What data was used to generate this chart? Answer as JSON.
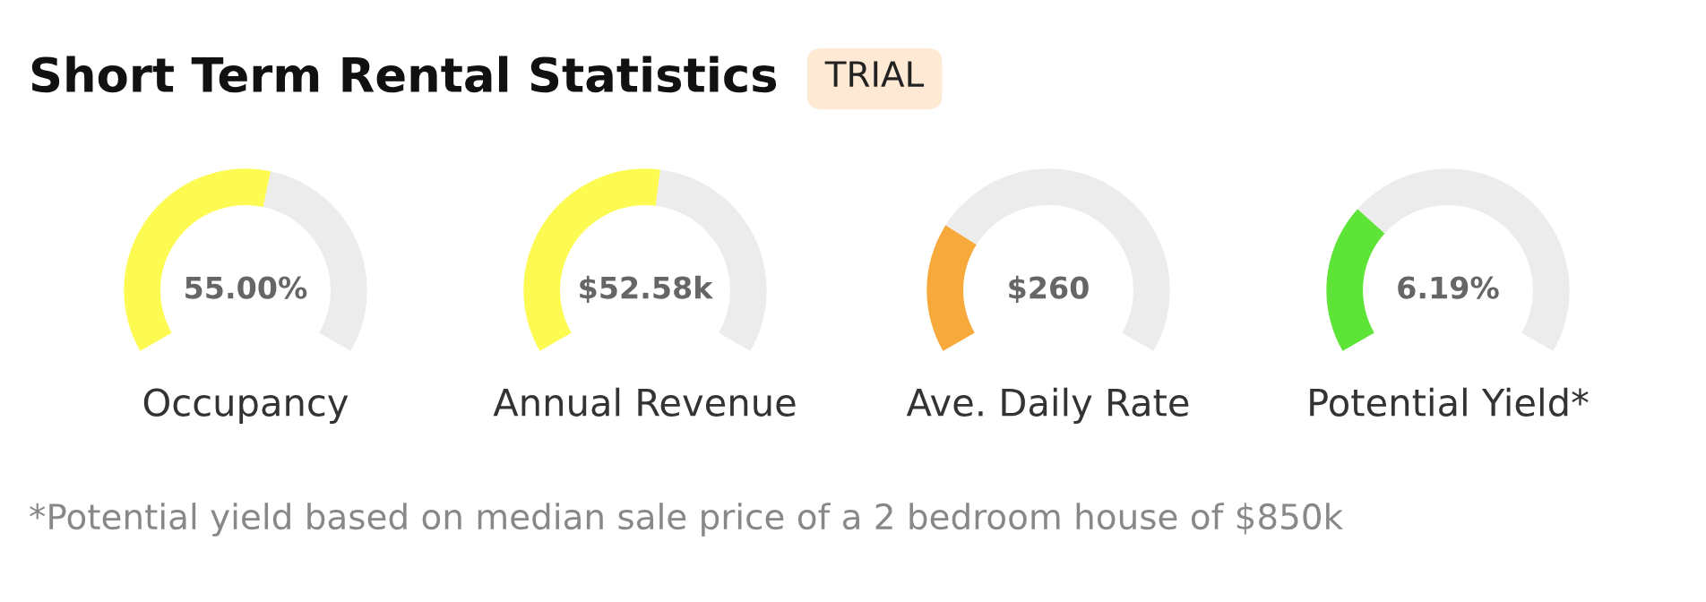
{
  "chart_data": [
    {
      "type": "other",
      "title": "Short Term Rental Statistics",
      "annotations": [
        "TRIAL",
        "*Potential yield based on median sale price of a 2 bedroom house of $850k"
      ]
    },
    {
      "type": "donut",
      "xlabel": "Occupancy",
      "annotations": [
        "55.00%"
      ],
      "categories": [
        null,
        null
      ],
      "values": [
        55,
        45
      ],
      "colors": [
        "#fdfb52",
        "#ececec"
      ]
    },
    {
      "type": "donut",
      "xlabel": "Annual Revenue",
      "annotations": [
        "$52.58k"
      ],
      "categories": [
        null,
        null
      ],
      "values": [
        53,
        47
      ],
      "colors": [
        "#fdfb52",
        "#ececec"
      ]
    },
    {
      "type": "donut",
      "xlabel": "Ave. Daily Rate",
      "annotations": [
        "$260"
      ],
      "categories": [
        null,
        null
      ],
      "values": [
        26,
        74
      ],
      "colors": [
        "#f7a93b",
        "#ececec"
      ]
    },
    {
      "type": "donut",
      "xlabel": "Potential Yield*",
      "annotations": [
        "6.19%"
      ],
      "categories": [
        null,
        null
      ],
      "values": [
        30,
        70
      ],
      "colors": [
        "#5ee337",
        "#ececec"
      ]
    }
  ]
}
